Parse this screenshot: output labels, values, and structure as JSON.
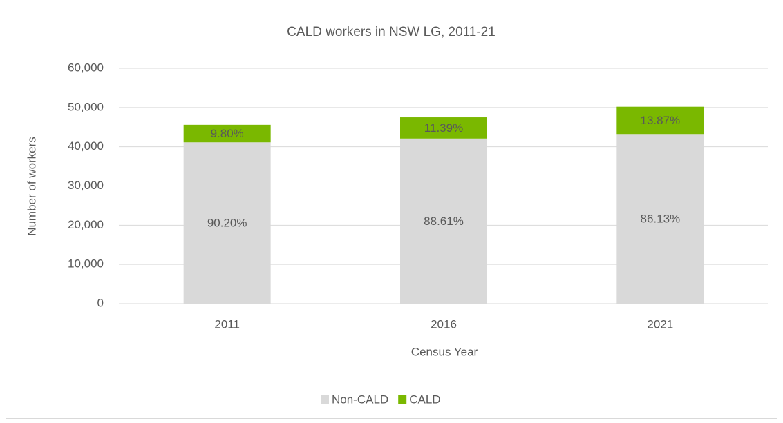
{
  "chart_data": {
    "type": "stacked_bar",
    "title": "CALD workers in NSW LG, 2011-21",
    "x_label": "Census Year",
    "y_label": "Number of workers",
    "categories": [
      "2011",
      "2016",
      "2021"
    ],
    "series": [
      {
        "name": "Non-CALD",
        "color": "#d9d9d9",
        "values": [
          41130,
          42090,
          43240
        ],
        "value_labels": [
          "90.20%",
          "88.61%",
          "86.13%"
        ]
      },
      {
        "name": "CALD",
        "color": "#7ab800",
        "values": [
          4470,
          5410,
          6960
        ],
        "value_labels": [
          "9.80%",
          "11.39%",
          "13.87%"
        ]
      }
    ],
    "ylim": [
      0,
      60000
    ],
    "yticks": [
      0,
      {
        "value": 10000,
        "label": "10,000"
      },
      {
        "value": 20000,
        "label": "20,000"
      },
      {
        "value": 30000,
        "label": "30,000"
      },
      {
        "value": 40000,
        "label": "40,000"
      },
      {
        "value": 50000,
        "label": "50,000"
      },
      {
        "value": 60000,
        "label": "60,000"
      }
    ],
    "grid": true,
    "legend": "bottom"
  }
}
